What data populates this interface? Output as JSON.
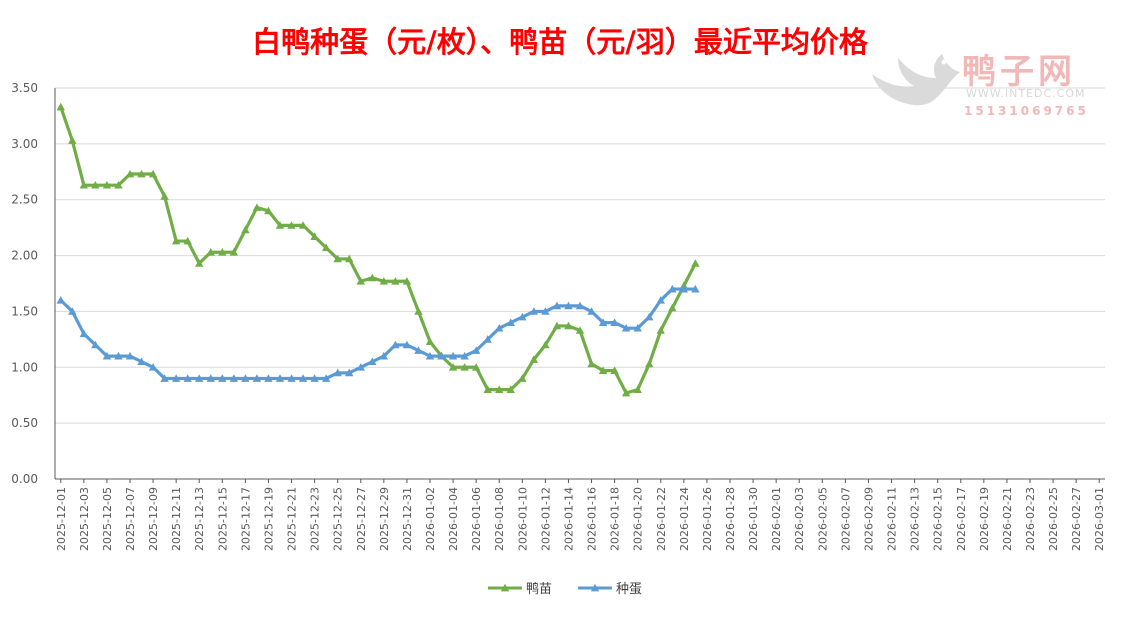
{
  "chart_data": {
    "type": "line",
    "title": "白鸭种蛋（元/枚）、鸭苗（元/羽）最近平均价格",
    "xlabel": "",
    "ylabel": "",
    "ylim": [
      0,
      3.5
    ],
    "yticks": [
      "0.00",
      "0.50",
      "1.00",
      "1.50",
      "2.00",
      "2.50",
      "3.00",
      "3.50"
    ],
    "grid": true,
    "legend_position": "bottom",
    "x_range": [
      "2025-12-01",
      "2026-03-02"
    ],
    "x_tick_labels": [
      "2025-12-01",
      "2025-12-03",
      "2025-12-05",
      "2025-12-07",
      "2025-12-09",
      "2025-12-11",
      "2025-12-13",
      "2025-12-15",
      "2025-12-17",
      "2025-12-19",
      "2025-12-21",
      "2025-12-23",
      "2025-12-25",
      "2025-12-27",
      "2025-12-29",
      "2025-12-31",
      "2026-01-02",
      "2026-01-04",
      "2026-01-06",
      "2026-01-08",
      "2026-01-10",
      "2026-01-12",
      "2026-01-14",
      "2026-01-16",
      "2026-01-18",
      "2026-01-20",
      "2026-01-22",
      "2026-01-24",
      "2026-01-26",
      "2026-01-28",
      "2026-01-30",
      "2026-02-01",
      "2026-02-03",
      "2026-02-05",
      "2026-02-07",
      "2026-02-09",
      "2026-02-11",
      "2026-02-13",
      "2026-02-15",
      "2026-02-17",
      "2026-02-19",
      "2026-02-21",
      "2026-02-23",
      "2026-02-25",
      "2026-02-27",
      "2026-03-01"
    ],
    "x": [
      "2025-12-01",
      "2025-12-02",
      "2025-12-03",
      "2025-12-04",
      "2025-12-05",
      "2025-12-06",
      "2025-12-07",
      "2025-12-08",
      "2025-12-09",
      "2025-12-10",
      "2025-12-11",
      "2025-12-12",
      "2025-12-13",
      "2025-12-14",
      "2025-12-15",
      "2025-12-16",
      "2025-12-17",
      "2025-12-18",
      "2025-12-19",
      "2025-12-20",
      "2025-12-21",
      "2025-12-22",
      "2025-12-23",
      "2025-12-24",
      "2025-12-25",
      "2025-12-26",
      "2025-12-27",
      "2025-12-28",
      "2025-12-29",
      "2025-12-30",
      "2025-12-31",
      "2026-01-01",
      "2026-01-02",
      "2026-01-03",
      "2026-01-04",
      "2026-01-05",
      "2026-01-06",
      "2026-01-07",
      "2026-01-08",
      "2026-01-09",
      "2026-01-10",
      "2026-01-11",
      "2026-01-12",
      "2026-01-13",
      "2026-01-14",
      "2026-01-15",
      "2026-01-16",
      "2026-01-17",
      "2026-01-18",
      "2026-01-19",
      "2026-01-20",
      "2026-01-21",
      "2026-01-22",
      "2026-01-23",
      "2026-01-24",
      "2026-01-25"
    ],
    "series": [
      {
        "name": "鸭苗",
        "color": "#70ad47",
        "values": [
          3.33,
          3.03,
          2.63,
          2.63,
          2.63,
          2.63,
          2.73,
          2.73,
          2.73,
          2.53,
          2.13,
          2.13,
          1.93,
          2.03,
          2.03,
          2.03,
          2.23,
          2.43,
          2.4,
          2.27,
          2.27,
          2.27,
          2.17,
          2.07,
          1.97,
          1.97,
          1.77,
          1.8,
          1.77,
          1.77,
          1.77,
          1.5,
          1.23,
          1.1,
          1.0,
          1.0,
          1.0,
          0.8,
          0.8,
          0.8,
          0.9,
          1.07,
          1.2,
          1.37,
          1.37,
          1.33,
          1.03,
          0.97,
          0.97,
          0.77,
          0.8,
          1.03,
          1.33,
          1.53,
          1.73,
          1.93
        ]
      },
      {
        "name": "种蛋",
        "color": "#5b9bd5",
        "values": [
          1.6,
          1.5,
          1.3,
          1.2,
          1.1,
          1.1,
          1.1,
          1.05,
          1.0,
          0.9,
          0.9,
          0.9,
          0.9,
          0.9,
          0.9,
          0.9,
          0.9,
          0.9,
          0.9,
          0.9,
          0.9,
          0.9,
          0.9,
          0.9,
          0.95,
          0.95,
          1.0,
          1.05,
          1.1,
          1.2,
          1.2,
          1.15,
          1.1,
          1.1,
          1.1,
          1.1,
          1.15,
          1.25,
          1.35,
          1.4,
          1.45,
          1.5,
          1.5,
          1.55,
          1.55,
          1.55,
          1.5,
          1.4,
          1.4,
          1.35,
          1.35,
          1.45,
          1.6,
          1.7,
          1.7,
          1.7
        ]
      }
    ]
  },
  "watermark": {
    "name": "鸭子网",
    "url": "WWW.INTEDC.COM",
    "phone": "15131069765",
    "logo_icon": "duck-logo-icon"
  },
  "colors": {
    "title": "#ff0000",
    "grid": "#d9d9d9",
    "axis_text": "#595959"
  }
}
